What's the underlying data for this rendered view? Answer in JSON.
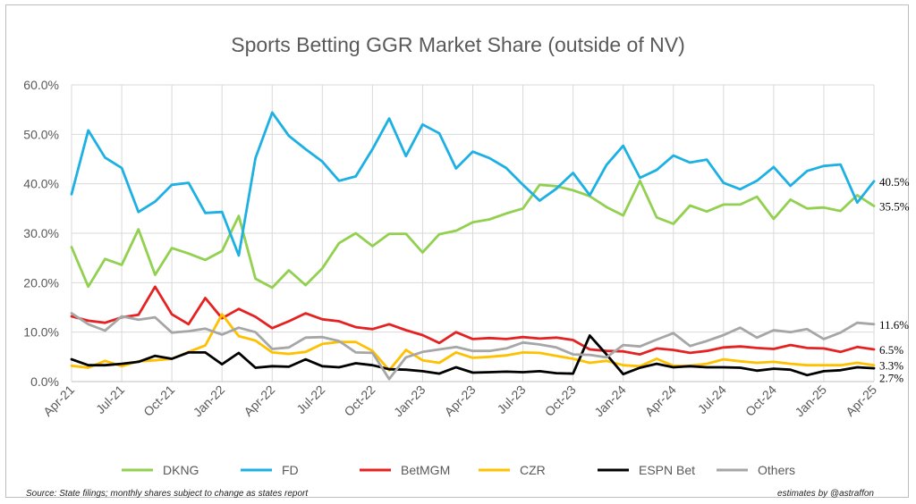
{
  "chart_data": {
    "type": "line",
    "title": "Sports Betting GGR Market Share (outside of NV)",
    "xlabel": "",
    "ylabel": "",
    "ylim": [
      0,
      60
    ],
    "yticks": [
      "0.0%",
      "10.0%",
      "20.0%",
      "30.0%",
      "40.0%",
      "50.0%",
      "60.0%"
    ],
    "xticks": [
      "Apr-21",
      "Jul-21",
      "Oct-21",
      "Jan-22",
      "Apr-22",
      "Jul-22",
      "Oct-22",
      "Jan-23",
      "Apr-23",
      "Jul-23",
      "Oct-23",
      "Jan-24",
      "Apr-24",
      "Jul-24",
      "Oct-24",
      "Jan-25",
      "Apr-25"
    ],
    "grid": true,
    "legend_position": "bottom",
    "series": [
      {
        "name": "DKNG",
        "color": "#92d050",
        "end_label": "35.5%",
        "values": [
          27.2,
          19.2,
          24.8,
          23.6,
          30.8,
          21.6,
          27.0,
          25.9,
          24.6,
          26.4,
          33.5,
          20.8,
          19.0,
          22.5,
          19.5,
          22.9,
          28.0,
          30.0,
          27.4,
          29.9,
          29.9,
          26.1,
          29.8,
          30.5,
          32.2,
          32.8,
          34.0,
          35.0,
          39.8,
          39.5,
          38.7,
          37.5,
          35.3,
          33.6,
          40.6,
          33.2,
          31.9,
          35.6,
          34.4,
          35.8,
          35.8,
          37.4,
          32.9,
          36.8,
          35.0,
          35.2,
          34.5,
          37.7,
          35.5
        ]
      },
      {
        "name": "FD",
        "color": "#1cb0e3",
        "end_label": "40.5%",
        "values": [
          37.9,
          50.8,
          45.3,
          43.2,
          34.3,
          36.4,
          39.8,
          40.2,
          34.1,
          34.3,
          25.5,
          45.2,
          54.4,
          49.7,
          47.0,
          44.5,
          40.6,
          41.5,
          47.0,
          53.2,
          45.6,
          52.0,
          50.2,
          43.1,
          46.5,
          45.2,
          43.2,
          39.8,
          36.6,
          39.0,
          42.2,
          37.7,
          43.8,
          47.7,
          41.2,
          42.8,
          45.7,
          44.3,
          44.9,
          40.2,
          38.9,
          40.6,
          43.4,
          39.6,
          42.6,
          43.6,
          43.9,
          36.2,
          40.5
        ]
      },
      {
        "name": "BetMGM",
        "color": "#e52222",
        "end_label": "6.5%",
        "values": [
          13.2,
          12.3,
          11.9,
          13.0,
          13.5,
          19.2,
          13.6,
          11.6,
          16.9,
          12.8,
          14.7,
          13.1,
          10.8,
          12.2,
          13.8,
          12.6,
          12.2,
          11.0,
          10.6,
          11.6,
          10.4,
          9.4,
          7.8,
          10.0,
          8.6,
          8.8,
          8.6,
          9.0,
          8.7,
          8.9,
          8.4,
          6.5,
          6.2,
          6.1,
          5.5,
          6.7,
          6.4,
          5.8,
          6.2,
          6.9,
          7.1,
          6.8,
          6.6,
          7.4,
          6.8,
          6.7,
          6.0,
          7.0,
          6.5
        ]
      },
      {
        "name": "CZR",
        "color": "#ffc000",
        "end_label": "3.3%",
        "values": [
          3.2,
          2.8,
          4.2,
          3.1,
          4.1,
          4.3,
          4.6,
          6.0,
          7.3,
          13.6,
          9.2,
          8.3,
          5.9,
          5.6,
          6.0,
          7.6,
          8.0,
          8.0,
          6.2,
          2.3,
          6.4,
          4.3,
          3.8,
          5.9,
          4.8,
          5.0,
          5.3,
          5.9,
          5.8,
          5.2,
          4.6,
          3.8,
          4.2,
          3.3,
          3.1,
          4.6,
          3.2,
          3.2,
          3.6,
          4.5,
          4.1,
          3.8,
          4.0,
          3.6,
          3.3,
          3.3,
          3.3,
          3.8,
          3.3
        ]
      },
      {
        "name": "ESPN Bet",
        "color": "#000000",
        "end_label": "2.7%",
        "values": [
          4.5,
          3.3,
          3.3,
          3.6,
          4.0,
          5.2,
          4.6,
          5.9,
          5.9,
          3.5,
          5.8,
          2.8,
          3.1,
          3.0,
          4.5,
          3.1,
          2.9,
          3.7,
          3.3,
          2.5,
          2.4,
          2.1,
          1.6,
          2.9,
          1.8,
          1.9,
          2.0,
          1.9,
          2.1,
          1.7,
          1.6,
          9.3,
          5.5,
          1.5,
          2.8,
          3.6,
          2.9,
          3.1,
          2.9,
          2.9,
          2.8,
          2.2,
          2.6,
          2.4,
          1.3,
          2.1,
          2.3,
          2.9,
          2.7
        ]
      },
      {
        "name": "Others",
        "color": "#a6a6a6",
        "end_label": "11.6%",
        "values": [
          13.8,
          11.6,
          10.3,
          13.2,
          12.5,
          13.0,
          9.9,
          10.2,
          10.7,
          9.5,
          10.9,
          10.0,
          6.6,
          6.9,
          8.9,
          9.0,
          8.2,
          5.9,
          5.8,
          0.5,
          4.9,
          6.0,
          6.5,
          7.0,
          6.2,
          6.2,
          6.7,
          7.9,
          7.5,
          6.9,
          5.5,
          5.4,
          4.9,
          7.4,
          7.1,
          8.5,
          9.8,
          7.2,
          8.2,
          9.4,
          10.9,
          8.9,
          10.4,
          10.0,
          10.6,
          8.6,
          9.9,
          11.9,
          11.6
        ]
      }
    ]
  },
  "footer": {
    "source": "Source: State filings; monthly shares subject to change as states report",
    "credit": "estimates by @astraffon"
  }
}
